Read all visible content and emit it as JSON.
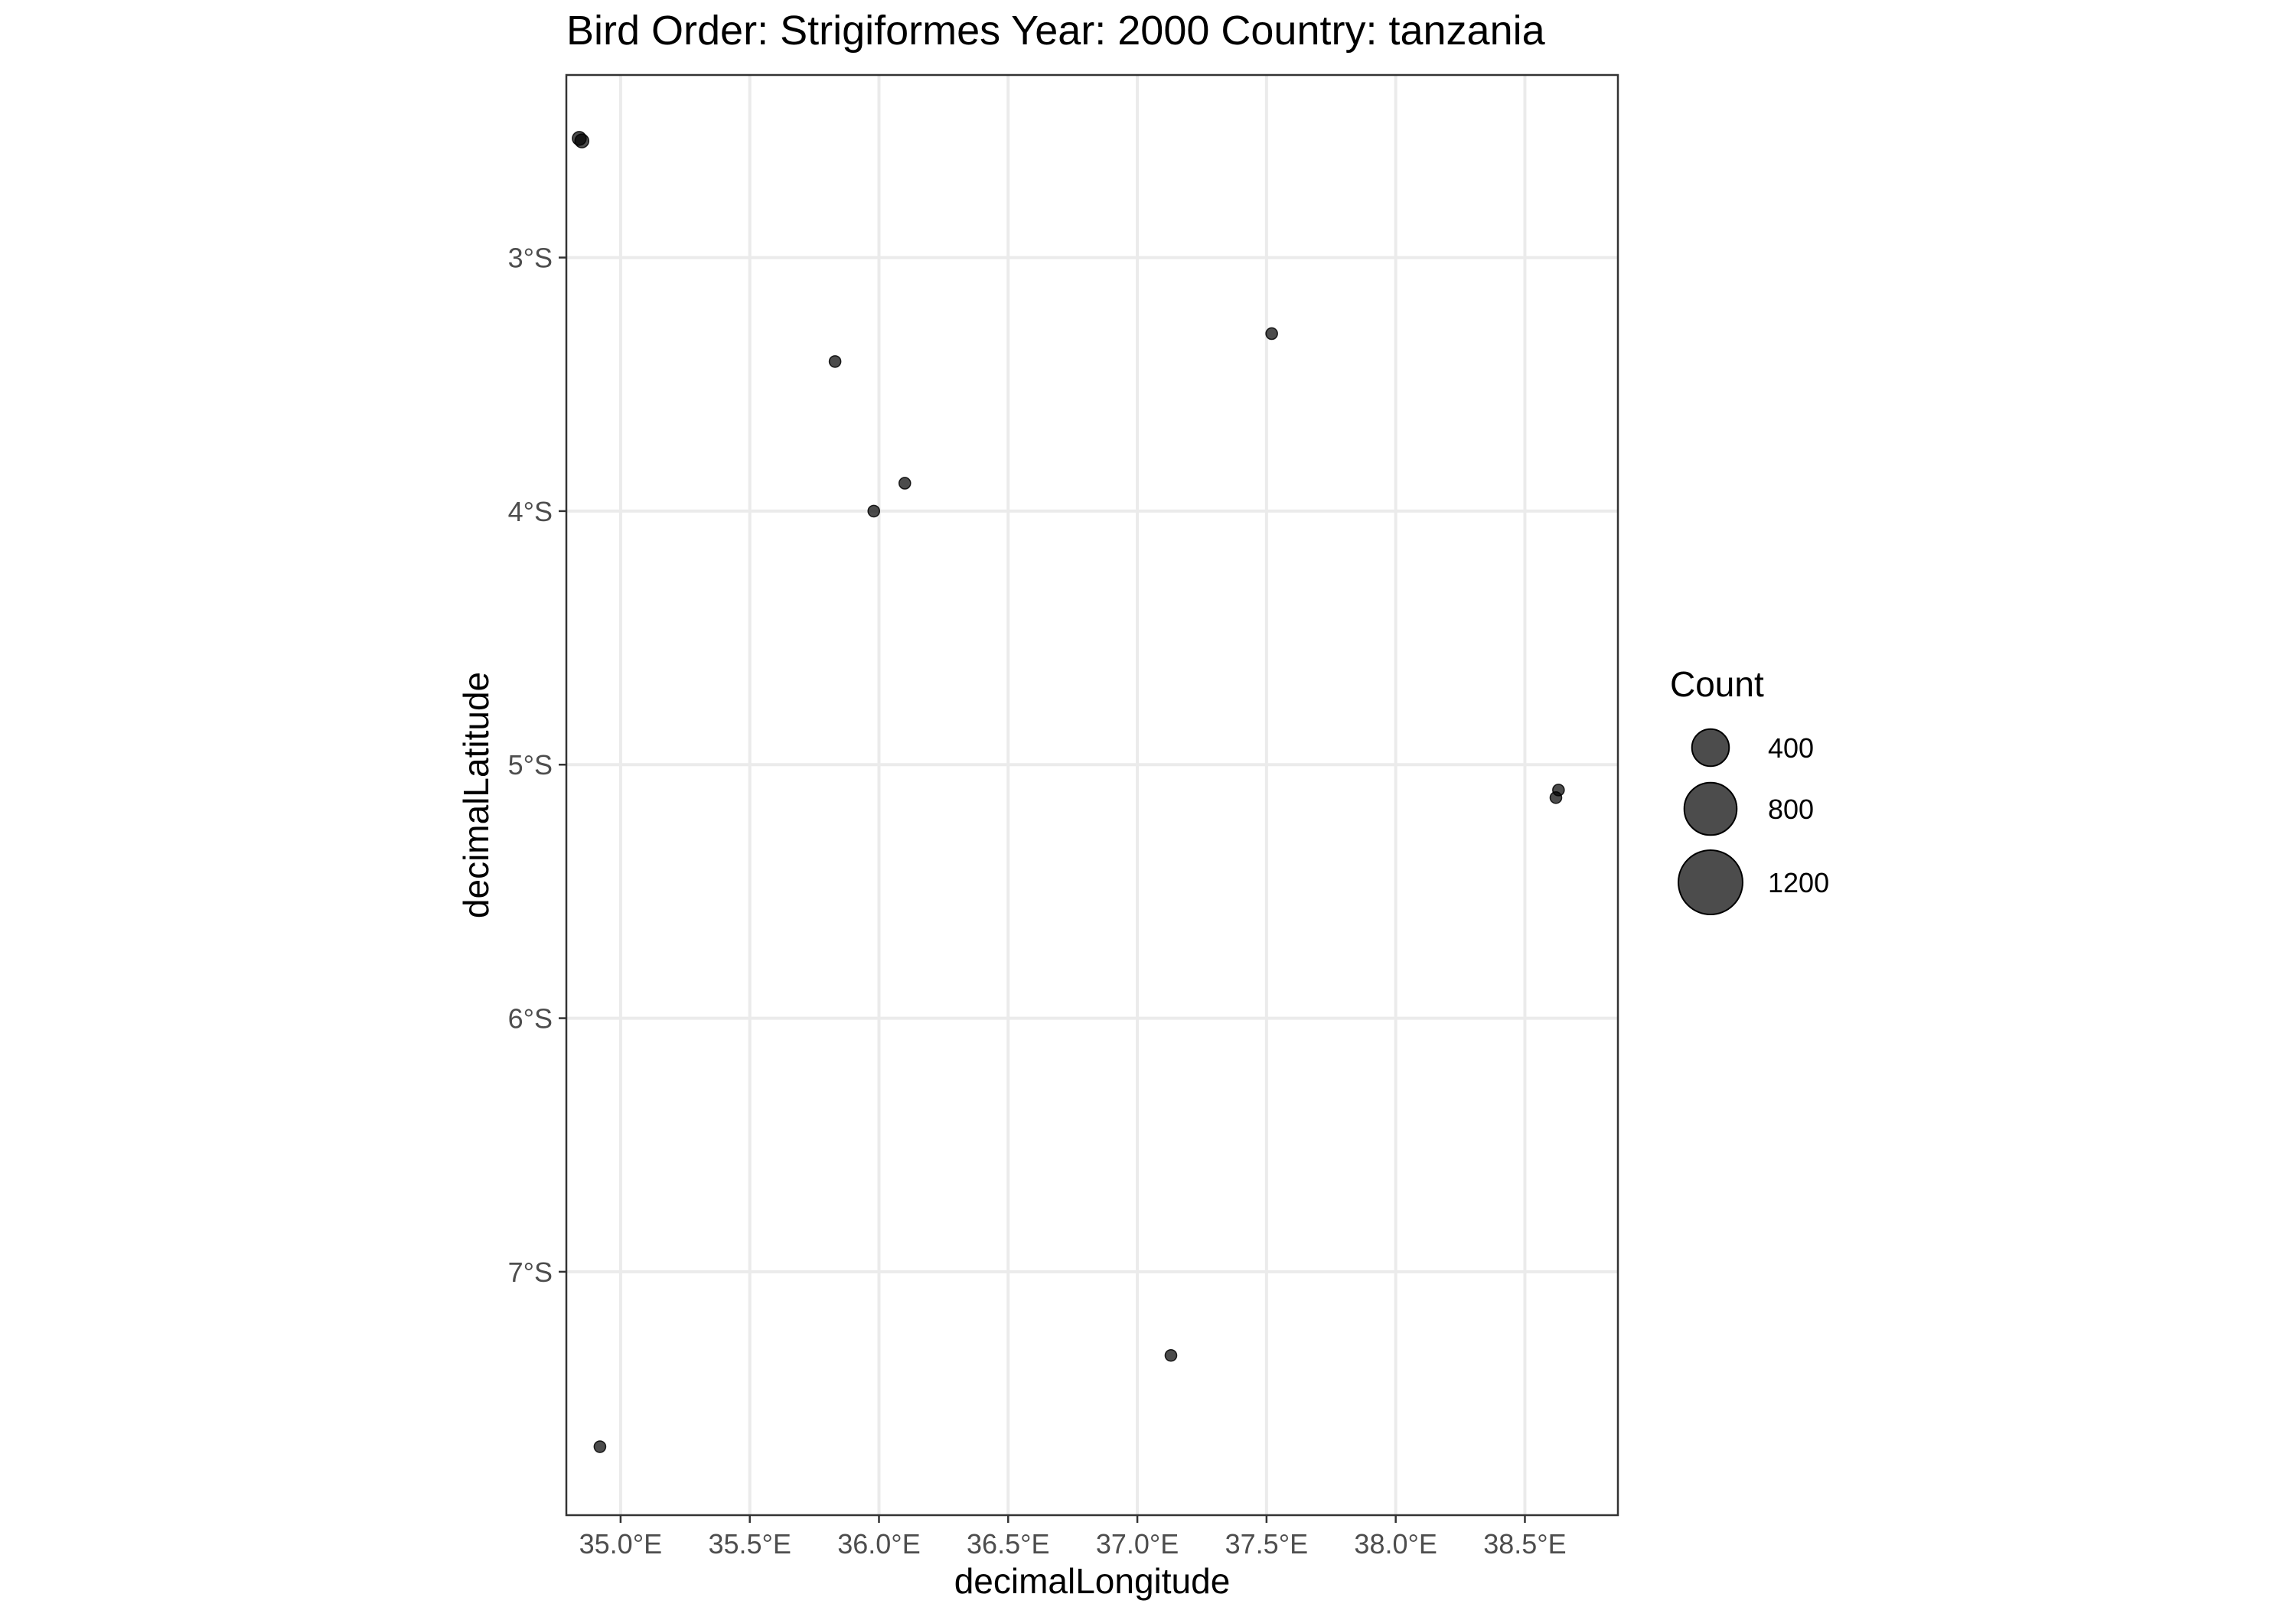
{
  "chart_data": {
    "type": "scatter",
    "title": "Bird Order: Strigiformes Year: 2000 Country: tanzania",
    "xlabel": "decimalLongitude",
    "ylabel": "decimalLatitude",
    "xlim": [
      34.79,
      38.86
    ],
    "ylim": [
      -7.96,
      -2.28
    ],
    "x_ticks": [
      {
        "value": 35.0,
        "label": "35.0°E"
      },
      {
        "value": 35.5,
        "label": "35.5°E"
      },
      {
        "value": 36.0,
        "label": "36.0°E"
      },
      {
        "value": 36.5,
        "label": "36.5°E"
      },
      {
        "value": 37.0,
        "label": "37.0°E"
      },
      {
        "value": 37.5,
        "label": "37.5°E"
      },
      {
        "value": 38.0,
        "label": "38.0°E"
      },
      {
        "value": 38.5,
        "label": "38.5°E"
      }
    ],
    "y_ticks": [
      {
        "value": -3,
        "label": "3°S"
      },
      {
        "value": -4,
        "label": "4°S"
      },
      {
        "value": -5,
        "label": "5°S"
      },
      {
        "value": -6,
        "label": "6°S"
      },
      {
        "value": -7,
        "label": "7°S"
      }
    ],
    "grid": true,
    "points": [
      {
        "x": 34.84,
        "y": -2.53,
        "count": 4
      },
      {
        "x": 34.85,
        "y": -2.54,
        "count": 3
      },
      {
        "x": 35.83,
        "y": -3.41,
        "count": 2
      },
      {
        "x": 36.1,
        "y": -3.89,
        "count": 2
      },
      {
        "x": 35.98,
        "y": -4.0,
        "count": 2
      },
      {
        "x": 37.52,
        "y": -3.3,
        "count": 2
      },
      {
        "x": 38.63,
        "y": -5.1,
        "count": 2
      },
      {
        "x": 38.62,
        "y": -5.13,
        "count": 2
      },
      {
        "x": 37.13,
        "y": -7.33,
        "count": 2
      },
      {
        "x": 34.92,
        "y": -7.69,
        "count": 2
      }
    ],
    "legend": {
      "title": "Count",
      "position": "right",
      "entries": [
        {
          "value": 400,
          "label": "400"
        },
        {
          "value": 800,
          "label": "800"
        },
        {
          "value": 1200,
          "label": "1200"
        }
      ]
    }
  }
}
